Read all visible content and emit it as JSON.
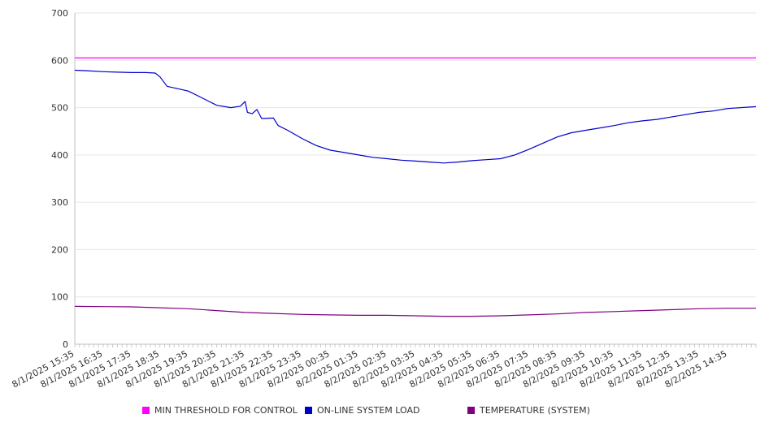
{
  "chart_data": {
    "type": "line",
    "title": "",
    "xlabel": "",
    "ylabel": "",
    "ylim": [
      0,
      700
    ],
    "yticks": [
      0,
      100,
      200,
      300,
      400,
      500,
      600,
      700
    ],
    "grid": true,
    "legend_position": "bottom",
    "x_start": "8/1/2025 15:35",
    "x_end": "8/2/2025 15:35",
    "x_tick_labels": [
      "8/1/2025 15:35",
      "8/1/2025 16:35",
      "8/1/2025 17:35",
      "8/1/2025 18:35",
      "8/1/2025 19:35",
      "8/1/2025 20:35",
      "8/1/2025 21:35",
      "8/1/2025 22:35",
      "8/1/2025 23:35",
      "8/2/2025 00:35",
      "8/2/2025 01:35",
      "8/2/2025 02:35",
      "8/2/2025 03:35",
      "8/2/2025 04:35",
      "8/2/2025 05:35",
      "8/2/2025 06:35",
      "8/2/2025 07:35",
      "8/2/2025 08:35",
      "8/2/2025 09:35",
      "8/2/2025 10:35",
      "8/2/2025 11:35",
      "8/2/2025 12:35",
      "8/2/2025 13:35",
      "8/2/2025 14:35"
    ],
    "series": [
      {
        "name": "MIN THRESHOLD FOR CONTROL",
        "color": "#ff00ff",
        "points": [
          [
            "8/1/2025 15:35",
            605
          ],
          [
            "8/2/2025 15:35",
            605
          ]
        ]
      },
      {
        "name": "ON-LINE SYSTEM LOAD",
        "color": "#0000cc",
        "points": [
          [
            "8/1/2025 15:35",
            579
          ],
          [
            "8/1/2025 16:00",
            578
          ],
          [
            "8/1/2025 16:35",
            576
          ],
          [
            "8/1/2025 17:05",
            575
          ],
          [
            "8/1/2025 17:35",
            574
          ],
          [
            "8/1/2025 18:05",
            574
          ],
          [
            "8/1/2025 18:25",
            573
          ],
          [
            "8/1/2025 18:35",
            565
          ],
          [
            "8/1/2025 18:50",
            545
          ],
          [
            "8/1/2025 19:35",
            535
          ],
          [
            "8/1/2025 20:05",
            520
          ],
          [
            "8/1/2025 20:35",
            505
          ],
          [
            "8/1/2025 21:05",
            500
          ],
          [
            "8/1/2025 21:25",
            503
          ],
          [
            "8/1/2025 21:35",
            513
          ],
          [
            "8/1/2025 21:40",
            490
          ],
          [
            "8/1/2025 21:50",
            487
          ],
          [
            "8/1/2025 22:00",
            496
          ],
          [
            "8/1/2025 22:10",
            477
          ],
          [
            "8/1/2025 22:35",
            478
          ],
          [
            "8/1/2025 22:45",
            462
          ],
          [
            "8/1/2025 23:05",
            452
          ],
          [
            "8/1/2025 23:35",
            435
          ],
          [
            "8/2/2025 00:05",
            420
          ],
          [
            "8/2/2025 00:35",
            410
          ],
          [
            "8/2/2025 01:05",
            405
          ],
          [
            "8/2/2025 01:35",
            400
          ],
          [
            "8/2/2025 02:05",
            395
          ],
          [
            "8/2/2025 02:35",
            392
          ],
          [
            "8/2/2025 03:05",
            389
          ],
          [
            "8/2/2025 03:35",
            387
          ],
          [
            "8/2/2025 04:05",
            385
          ],
          [
            "8/2/2025 04:35",
            383
          ],
          [
            "8/2/2025 05:05",
            385
          ],
          [
            "8/2/2025 05:35",
            388
          ],
          [
            "8/2/2025 06:05",
            390
          ],
          [
            "8/2/2025 06:35",
            392
          ],
          [
            "8/2/2025 07:05",
            400
          ],
          [
            "8/2/2025 07:35",
            412
          ],
          [
            "8/2/2025 08:05",
            425
          ],
          [
            "8/2/2025 08:35",
            438
          ],
          [
            "8/2/2025 09:05",
            447
          ],
          [
            "8/2/2025 09:35",
            452
          ],
          [
            "8/2/2025 10:05",
            457
          ],
          [
            "8/2/2025 10:35",
            462
          ],
          [
            "8/2/2025 11:05",
            468
          ],
          [
            "8/2/2025 11:35",
            472
          ],
          [
            "8/2/2025 12:05",
            475
          ],
          [
            "8/2/2025 12:35",
            480
          ],
          [
            "8/2/2025 13:05",
            485
          ],
          [
            "8/2/2025 13:35",
            490
          ],
          [
            "8/2/2025 14:05",
            493
          ],
          [
            "8/2/2025 14:35",
            498
          ],
          [
            "8/2/2025 15:35",
            502
          ]
        ]
      },
      {
        "name": "TEMPERATURE (SYSTEM)",
        "color": "#800080",
        "points": [
          [
            "8/1/2025 15:35",
            80
          ],
          [
            "8/1/2025 17:35",
            79
          ],
          [
            "8/1/2025 18:35",
            77
          ],
          [
            "8/1/2025 19:35",
            75
          ],
          [
            "8/1/2025 20:35",
            71
          ],
          [
            "8/1/2025 21:35",
            67
          ],
          [
            "8/1/2025 22:35",
            65
          ],
          [
            "8/1/2025 23:35",
            63
          ],
          [
            "8/2/2025 00:35",
            62
          ],
          [
            "8/2/2025 01:35",
            61
          ],
          [
            "8/2/2025 02:35",
            61
          ],
          [
            "8/2/2025 03:35",
            60
          ],
          [
            "8/2/2025 04:35",
            59
          ],
          [
            "8/2/2025 05:35",
            59
          ],
          [
            "8/2/2025 06:35",
            60
          ],
          [
            "8/2/2025 07:35",
            62
          ],
          [
            "8/2/2025 08:35",
            64
          ],
          [
            "8/2/2025 09:35",
            67
          ],
          [
            "8/2/2025 10:35",
            69
          ],
          [
            "8/2/2025 11:35",
            71
          ],
          [
            "8/2/2025 12:35",
            73
          ],
          [
            "8/2/2025 13:35",
            75
          ],
          [
            "8/2/2025 14:35",
            76
          ],
          [
            "8/2/2025 15:35",
            76
          ]
        ]
      }
    ]
  }
}
